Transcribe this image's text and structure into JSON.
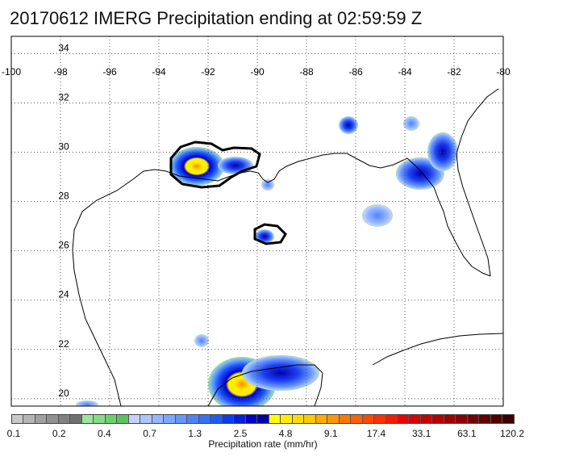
{
  "title": "20170612 IMERG Precipitation ending at 02:59:59 Z",
  "map": {
    "lon_range": [
      -100,
      -80
    ],
    "lat_range": [
      19.7,
      34.7
    ],
    "lon_ticks": [
      "-100",
      "-98",
      "-96",
      "-94",
      "-92",
      "-90",
      "-88",
      "-86",
      "-84",
      "-82",
      "-80"
    ],
    "lat_ticks": [
      "34",
      "32",
      "30",
      "28",
      "26",
      "24",
      "22",
      "20"
    ],
    "grid": "dotted",
    "colors": {
      "land_outline": "#000000",
      "grid": "#555555"
    },
    "precip_cells": [
      {
        "name": "louisiana-coast-core",
        "lon": -92.4,
        "lat": 29.8,
        "level": "4.8-9.1"
      },
      {
        "name": "louisiana-coast-east",
        "lon": -91.0,
        "lat": 29.8,
        "level": "1.3-2.5"
      },
      {
        "name": "mississippi-delta",
        "lon": -89.7,
        "lat": 28.9,
        "level": "0.7-1.3"
      },
      {
        "name": "gulf-small-cell",
        "lon": -89.8,
        "lat": 26.9,
        "level": "1.3-2.5"
      },
      {
        "name": "alabama-cell",
        "lon": -86.0,
        "lat": 31.5,
        "level": "2.5-4.8"
      },
      {
        "name": "georgia-cell",
        "lon": -83.9,
        "lat": 31.5,
        "level": "1.3-2.5"
      },
      {
        "name": "florida-bigbend",
        "lon": -83.5,
        "lat": 29.5,
        "level": "2.5-4.8"
      },
      {
        "name": "florida-north",
        "lon": -82.1,
        "lat": 30.5,
        "level": "2.5-4.8"
      },
      {
        "name": "gulf-central",
        "lon": -85.0,
        "lat": 27.7,
        "level": "0.7-1.3"
      },
      {
        "name": "yucatan-west",
        "lon": -92.3,
        "lat": 22.5,
        "level": "0.7-1.3"
      },
      {
        "name": "yucatan-core",
        "lon": -90.9,
        "lat": 20.9,
        "level": "4.8-9.1"
      }
    ]
  },
  "colorbar": {
    "label": "Precipitation rate (mm/hr)",
    "tick_labels": [
      "0.1",
      "0.2",
      "0.4",
      "0.7",
      "1.3",
      "2.5",
      "4.8",
      "9.1",
      "17.4",
      "33.1",
      "63.1",
      "120.2"
    ],
    "colors": [
      "#c8c8c8",
      "#b4b4b4",
      "#a0a0a0",
      "#909090",
      "#808080",
      "#707070",
      "#9ee59e",
      "#84dc84",
      "#6ad06a",
      "#5ac45a",
      "#c8d0ff",
      "#aec4ff",
      "#94b8ff",
      "#7ca8ff",
      "#6496ff",
      "#4c84ff",
      "#3670ff",
      "#1e58ff",
      "#0a3cf0",
      "#0020dc",
      "#0000c8",
      "#0000aa",
      "#ffff00",
      "#ffee00",
      "#ffdc00",
      "#ffc800",
      "#ffaa00",
      "#ff9600",
      "#ff7800",
      "#ff6000",
      "#ff4800",
      "#ff3000",
      "#ff1800",
      "#f00000",
      "#dc0000",
      "#c80000",
      "#b40000",
      "#a00000",
      "#8c0000",
      "#780000",
      "#640000",
      "#500000",
      "#3c0000"
    ]
  }
}
